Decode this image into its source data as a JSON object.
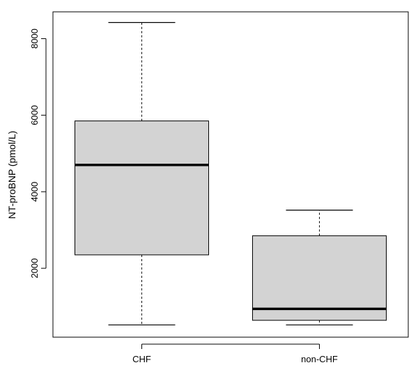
{
  "chart_data": {
    "type": "box",
    "title": "",
    "xlabel": "",
    "ylabel": "NT-proBNP (pmol/L)",
    "ylim": [
      200,
      8700
    ],
    "yticks": [
      2000,
      4000,
      6000,
      8000
    ],
    "grid": false,
    "categories": [
      "CHF",
      "non-CHF"
    ],
    "boxes": [
      {
        "category": "CHF",
        "min": 520,
        "q1": 2350,
        "median": 4700,
        "q3": 5850,
        "max": 8420
      },
      {
        "category": "non-CHF",
        "min": 520,
        "q1": 640,
        "median": 940,
        "q3": 2850,
        "max": 3520
      }
    ],
    "colors": {
      "box_fill": "#d3d3d3",
      "stroke": "#000000"
    }
  }
}
